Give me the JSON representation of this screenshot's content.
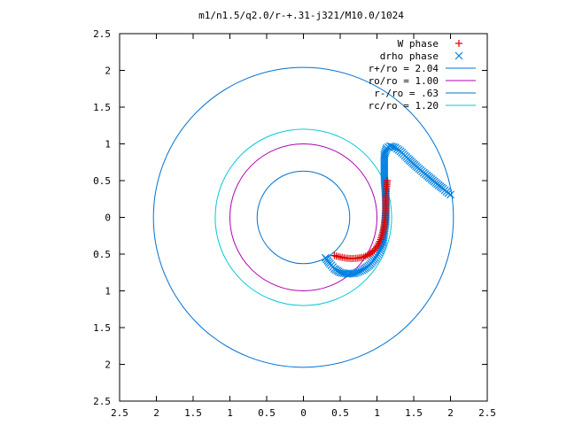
{
  "chart_data": {
    "type": "scatter",
    "title": "m1/n1.5/q2.0/r-+.31-j321/M10.0/1024",
    "xlabel": "",
    "ylabel": "",
    "xlim": [
      -2.5,
      2.5
    ],
    "ylim": [
      -2.5,
      2.5
    ],
    "x_ticks": [
      -2.5,
      -2,
      -1.5,
      -1,
      -0.5,
      0,
      0.5,
      1,
      1.5,
      2,
      2.5
    ],
    "y_ticks": [
      -2.5,
      -2,
      -1.5,
      -1,
      -0.5,
      0,
      0.5,
      1,
      1.5,
      2,
      2.5
    ],
    "x_tick_labels": [
      "2.5",
      "2",
      "1.5",
      "1",
      "0.5",
      "0",
      "0.5",
      "1",
      "1.5",
      "2",
      "2.5"
    ],
    "y_tick_labels": [
      "2.5",
      "2",
      "1.5",
      "1",
      "0.5",
      "0",
      "0.5",
      "1",
      "1.5",
      "2",
      "2.5"
    ],
    "grid": false,
    "legend_position": "top-right",
    "circles": [
      {
        "name": "r+/ro = 2.04",
        "radius": 2.04,
        "color": "#0072d2"
      },
      {
        "name": "ro/ro = 1.00",
        "radius": 1.0,
        "color": "#b000b0"
      },
      {
        "name": "r-/ro = .63",
        "radius": 0.63,
        "color": "#0072d2"
      },
      {
        "name": "rc/ro = 1.20",
        "radius": 1.2,
        "color": "#00c8d8"
      }
    ],
    "series": [
      {
        "name": "W phase",
        "marker": "+",
        "color": "#e00000",
        "points": [
          [
            0.42,
            -0.52
          ],
          [
            0.5,
            -0.54
          ],
          [
            0.58,
            -0.555
          ],
          [
            0.66,
            -0.56
          ],
          [
            0.74,
            -0.555
          ],
          [
            0.82,
            -0.54
          ],
          [
            0.9,
            -0.5
          ],
          [
            0.96,
            -0.45
          ],
          [
            1.01,
            -0.38
          ],
          [
            1.05,
            -0.3
          ],
          [
            1.08,
            -0.2
          ],
          [
            1.1,
            -0.1
          ],
          [
            1.11,
            0.0
          ],
          [
            1.12,
            0.1
          ],
          [
            1.12,
            0.2
          ],
          [
            1.12,
            0.3
          ],
          [
            1.13,
            0.4
          ],
          [
            1.14,
            0.5
          ]
        ]
      },
      {
        "name": "drho phase",
        "marker": "x",
        "color": "#0080e0",
        "points": [
          [
            0.3,
            -0.55
          ],
          [
            0.36,
            -0.63
          ],
          [
            0.42,
            -0.7
          ],
          [
            0.5,
            -0.75
          ],
          [
            0.6,
            -0.77
          ],
          [
            0.7,
            -0.76
          ],
          [
            0.8,
            -0.72
          ],
          [
            0.9,
            -0.65
          ],
          [
            0.98,
            -0.55
          ],
          [
            1.04,
            -0.45
          ],
          [
            1.08,
            -0.35
          ],
          [
            1.1,
            -0.2
          ],
          [
            1.12,
            -0.05
          ],
          [
            1.12,
            0.1
          ],
          [
            1.12,
            0.25
          ],
          [
            1.11,
            0.4
          ],
          [
            1.1,
            0.55
          ],
          [
            1.1,
            0.7
          ],
          [
            1.1,
            0.85
          ],
          [
            1.13,
            0.94
          ],
          [
            1.18,
            0.97
          ],
          [
            1.25,
            0.95
          ],
          [
            1.32,
            0.9
          ],
          [
            1.42,
            0.8
          ],
          [
            1.55,
            0.68
          ],
          [
            1.68,
            0.57
          ],
          [
            1.8,
            0.47
          ],
          [
            1.9,
            0.39
          ],
          [
            1.97,
            0.33
          ],
          [
            2.0,
            0.31
          ]
        ]
      }
    ]
  }
}
